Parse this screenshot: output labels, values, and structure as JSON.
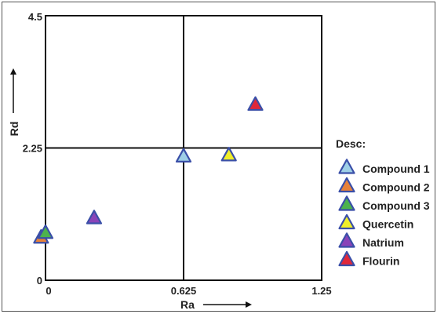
{
  "chart_data": {
    "type": "scatter",
    "title": "",
    "xlabel": "Ra",
    "ylabel": "Rd",
    "xlim": [
      0,
      1.25
    ],
    "ylim": [
      0,
      4.5
    ],
    "x_ticks": [
      "0",
      "0.625",
      "1.25"
    ],
    "y_ticks": [
      "0",
      "2.25",
      "4.5"
    ],
    "quadrant_lines": {
      "x": 0.625,
      "y": 2.25
    },
    "grid": false,
    "legend_title": "Desc:",
    "legend_position": "right",
    "series": [
      {
        "name": "Compound 1",
        "color": "#9ecfe6",
        "x": [
          0.625
        ],
        "y": [
          2.1
        ]
      },
      {
        "name": "Compound 2",
        "color": "#e8823a",
        "x": [
          -0.02
        ],
        "y": [
          0.72
        ]
      },
      {
        "name": "Compound 3",
        "color": "#4db34d",
        "x": [
          0.0
        ],
        "y": [
          0.8
        ]
      },
      {
        "name": "Quercetin",
        "color": "#f0ee2a",
        "x": [
          0.83
        ],
        "y": [
          2.12
        ]
      },
      {
        "name": "Natrium",
        "color": "#8a44b8",
        "x": [
          0.22
        ],
        "y": [
          1.05
        ]
      },
      {
        "name": "Flourin",
        "color": "#e0283a",
        "x": [
          0.95
        ],
        "y": [
          2.98
        ]
      }
    ],
    "marker": "triangle",
    "marker_edge_color": "#3a4fa8"
  }
}
